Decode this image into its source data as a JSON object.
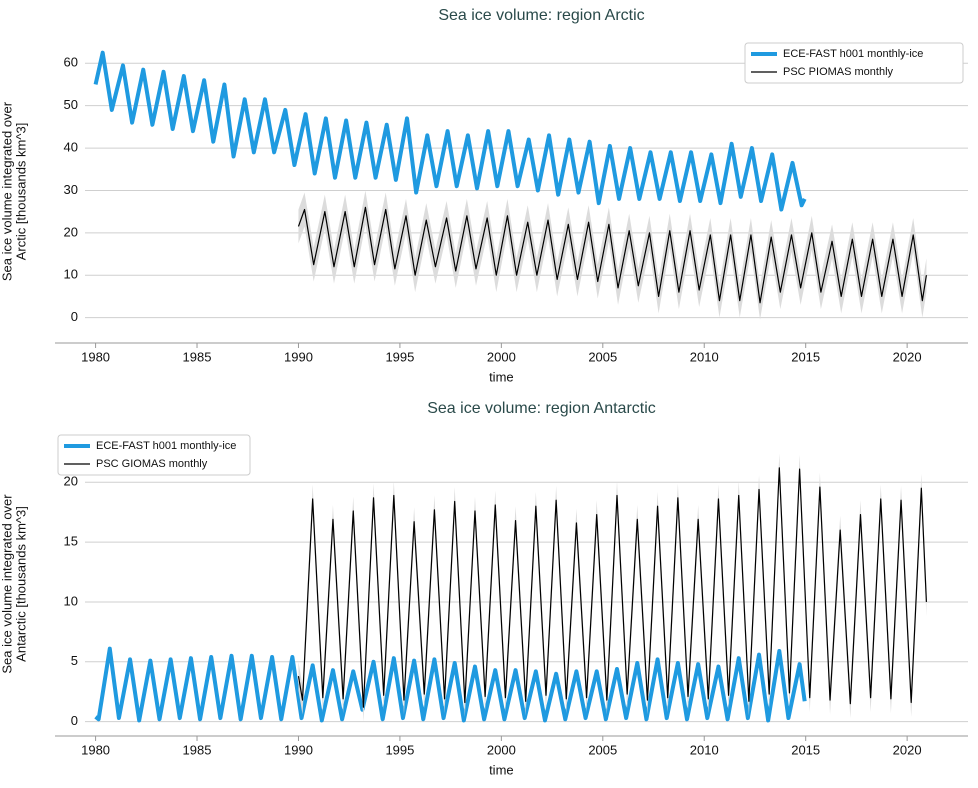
{
  "chart_data": [
    {
      "type": "line",
      "title": "Sea ice volume: region Arctic",
      "xlabel": "time",
      "ylabel": [
        "Sea ice volume integrated over",
        "Arctic [thousands km^3]"
      ],
      "xlim": [
        1978,
        2023
      ],
      "xticks": [
        1980,
        1985,
        1990,
        1995,
        2000,
        2005,
        2010,
        2015,
        2020
      ],
      "ylim": [
        -6,
        65.5
      ],
      "yticks": [
        0,
        10,
        20,
        30,
        40,
        50,
        60
      ],
      "grid": true,
      "legend": "upper right",
      "series": [
        {
          "name": "ECE-FAST h001 monthly-ice",
          "color": "#1f9ae0",
          "linewidth": 4,
          "x": [
            1980,
            1980.35,
            1980.8,
            1981.35,
            1981.8,
            1982.35,
            1982.8,
            1983.35,
            1983.8,
            1984.35,
            1984.8,
            1985.35,
            1985.8,
            1986.35,
            1986.8,
            1987.35,
            1987.8,
            1988.35,
            1988.8,
            1989.35,
            1989.8,
            1990.35,
            1990.8,
            1991.35,
            1991.8,
            1992.35,
            1992.8,
            1993.35,
            1993.8,
            1994.35,
            1994.8,
            1995.35,
            1995.8,
            1996.35,
            1996.8,
            1997.35,
            1997.8,
            1998.35,
            1998.8,
            1999.35,
            1999.8,
            2000.35,
            2000.8,
            2001.35,
            2001.8,
            2002.35,
            2002.8,
            2003.35,
            2003.8,
            2004.35,
            2004.8,
            2005.35,
            2005.8,
            2006.35,
            2006.8,
            2007.35,
            2007.8,
            2008.35,
            2008.8,
            2009.35,
            2009.8,
            2010.35,
            2010.8,
            2011.35,
            2011.8,
            2012.35,
            2012.8,
            2013.35,
            2013.8,
            2014.35,
            2014.8,
            2014.95
          ],
          "values": [
            55,
            62.5,
            49,
            59.5,
            46,
            58.5,
            45.5,
            58,
            44.5,
            57,
            44,
            56,
            41.5,
            55,
            38,
            51.5,
            39,
            51.5,
            39,
            49,
            36,
            48,
            34,
            47,
            33,
            46.5,
            33,
            46,
            33,
            45.5,
            32.5,
            47,
            29.5,
            43,
            31,
            44,
            31,
            43,
            30.5,
            44,
            31,
            44,
            31,
            42,
            30,
            43,
            29,
            42,
            29.5,
            41.5,
            27,
            40.5,
            28,
            40,
            28,
            39,
            28,
            39,
            27.5,
            39,
            27.5,
            38.5,
            27,
            41,
            28.5,
            40,
            27.5,
            38.5,
            25.5,
            36.5,
            26.5,
            28
          ]
        },
        {
          "name": "PSC PIOMAS monthly",
          "color": "#000000",
          "linewidth": 1.2,
          "band": 4,
          "band_color": "#dcdcdc",
          "x": [
            1990,
            1990.3,
            1990.75,
            1991.3,
            1991.75,
            1992.3,
            1992.75,
            1993.3,
            1993.75,
            1994.3,
            1994.75,
            1995.3,
            1995.75,
            1996.3,
            1996.75,
            1997.3,
            1997.75,
            1998.3,
            1998.75,
            1999.3,
            1999.75,
            2000.3,
            2000.75,
            2001.3,
            2001.75,
            2002.3,
            2002.75,
            2003.3,
            2003.75,
            2004.3,
            2004.75,
            2005.3,
            2005.75,
            2006.3,
            2006.75,
            2007.3,
            2007.75,
            2008.3,
            2008.75,
            2009.3,
            2009.75,
            2010.3,
            2010.75,
            2011.3,
            2011.75,
            2012.3,
            2012.75,
            2013.3,
            2013.75,
            2014.3,
            2014.75,
            2015.3,
            2015.75,
            2016.3,
            2016.75,
            2017.3,
            2017.75,
            2018.3,
            2018.75,
            2019.3,
            2019.75,
            2020.3,
            2020.75,
            2020.95
          ],
          "values": [
            21.5,
            25.5,
            12.5,
            25,
            12,
            25,
            12,
            26,
            12.5,
            25.5,
            11.5,
            24,
            10,
            23,
            12,
            23.5,
            11,
            24,
            11.5,
            23.5,
            10,
            24,
            10,
            22.5,
            10,
            23,
            9,
            22,
            9,
            22.5,
            8.5,
            22,
            7,
            20.5,
            7.5,
            20,
            5,
            20.5,
            6,
            20.5,
            6.5,
            19.5,
            4,
            19.5,
            4,
            19.5,
            3.5,
            19,
            6,
            19.5,
            7,
            20,
            6,
            18,
            5,
            18.5,
            5,
            18.5,
            5,
            18.5,
            5,
            19.5,
            4,
            10
          ]
        }
      ]
    },
    {
      "type": "line",
      "title": "Sea ice volume: region Antarctic",
      "xlabel": "time",
      "ylabel": [
        "Sea ice volume integrated over",
        "Antarctic [thousands km^3]"
      ],
      "xlim": [
        1978,
        2023
      ],
      "xticks": [
        1980,
        1985,
        1990,
        1995,
        2000,
        2005,
        2010,
        2015,
        2020
      ],
      "ylim": [
        -1.2,
        24.2
      ],
      "yticks": [
        0,
        5,
        10,
        15,
        20
      ],
      "grid": true,
      "legend": "upper left",
      "series": [
        {
          "name": "ECE-FAST h001 monthly-ice",
          "color": "#1f9ae0",
          "linewidth": 4,
          "x": [
            1980,
            1980.15,
            1980.7,
            1981.15,
            1981.7,
            1982.15,
            1982.7,
            1983.15,
            1983.7,
            1984.15,
            1984.7,
            1985.15,
            1985.7,
            1986.15,
            1986.7,
            1987.15,
            1987.7,
            1988.15,
            1988.7,
            1989.15,
            1989.7,
            1990.15,
            1990.7,
            1991.15,
            1991.7,
            1992.15,
            1992.7,
            1993.15,
            1993.7,
            1994.15,
            1994.7,
            1995.15,
            1995.7,
            1996.15,
            1996.7,
            1997.15,
            1997.7,
            1998.15,
            1998.7,
            1999.15,
            1999.7,
            2000.15,
            2000.7,
            2001.15,
            2001.7,
            2002.15,
            2002.7,
            2003.15,
            2003.7,
            2004.15,
            2004.7,
            2005.15,
            2005.7,
            2006.15,
            2006.7,
            2007.15,
            2007.7,
            2008.15,
            2008.7,
            2009.15,
            2009.7,
            2010.15,
            2010.7,
            2011.15,
            2011.7,
            2012.15,
            2012.7,
            2013.15,
            2013.7,
            2014.15,
            2014.7,
            2014.95
          ],
          "values": [
            0.4,
            0.2,
            6.1,
            0.3,
            5.2,
            0.1,
            5.1,
            0.2,
            5.2,
            0.3,
            5.3,
            0.2,
            5.4,
            0.3,
            5.5,
            0.2,
            5.5,
            0.3,
            5.4,
            0.2,
            5.4,
            0.3,
            4.7,
            0.1,
            4.3,
            0.2,
            4.2,
            1,
            5,
            0.2,
            5.3,
            0.3,
            5.1,
            0.2,
            5.2,
            0.3,
            4.9,
            0.1,
            4.6,
            0.2,
            4.3,
            0.2,
            4.3,
            0.3,
            4.2,
            0.1,
            4,
            0.2,
            4.2,
            0.3,
            4.2,
            0.2,
            4.4,
            0.3,
            4.9,
            0.2,
            5.2,
            0.3,
            4.9,
            0.2,
            4.8,
            0.3,
            4.6,
            0.2,
            5.3,
            0.3,
            5.6,
            0.1,
            5.9,
            0.3,
            4.8,
            1.7
          ]
        },
        {
          "name": "PSC GIOMAS monthly",
          "color": "#000000",
          "linewidth": 1.2,
          "band": 1.2,
          "band_color": "#dcdcdc",
          "x": [
            1990,
            1990.2,
            1990.7,
            1991.2,
            1991.7,
            1992.2,
            1992.7,
            1993.2,
            1993.7,
            1994.2,
            1994.7,
            1995.2,
            1995.7,
            1996.2,
            1996.7,
            1997.2,
            1997.7,
            1998.2,
            1998.7,
            1999.2,
            1999.7,
            2000.2,
            2000.7,
            2001.2,
            2001.7,
            2002.2,
            2002.7,
            2003.2,
            2003.7,
            2004.2,
            2004.7,
            2005.2,
            2005.7,
            2006.2,
            2006.7,
            2007.2,
            2007.7,
            2008.2,
            2008.7,
            2009.2,
            2009.7,
            2010.2,
            2010.7,
            2011.2,
            2011.7,
            2012.2,
            2012.7,
            2013.2,
            2013.7,
            2014.2,
            2014.7,
            2015.2,
            2015.7,
            2016.2,
            2016.7,
            2017.2,
            2017.7,
            2018.2,
            2018.7,
            2019.2,
            2019.7,
            2020.2,
            2020.7,
            2020.95
          ],
          "values": [
            3.8,
            1.8,
            18.6,
            2,
            16.9,
            1.9,
            17.6,
            1.2,
            18.7,
            2.2,
            18.9,
            1.8,
            16.7,
            2.3,
            17.7,
            1.9,
            18.4,
            1.6,
            17.6,
            2.1,
            18.1,
            2,
            16.8,
            1.7,
            18,
            2.2,
            18.5,
            1.9,
            16.6,
            2,
            17.3,
            1.8,
            18.9,
            2.3,
            16.9,
            1.8,
            18,
            2,
            18.7,
            2.1,
            16.9,
            1.9,
            18.6,
            2.2,
            18.9,
            1.7,
            19.4,
            2.3,
            21.2,
            2.4,
            21.1,
            2,
            19.6,
            1.8,
            16,
            1.5,
            17.3,
            2,
            18.6,
            1.9,
            18.5,
            1.6,
            19.5,
            10
          ]
        }
      ]
    }
  ]
}
